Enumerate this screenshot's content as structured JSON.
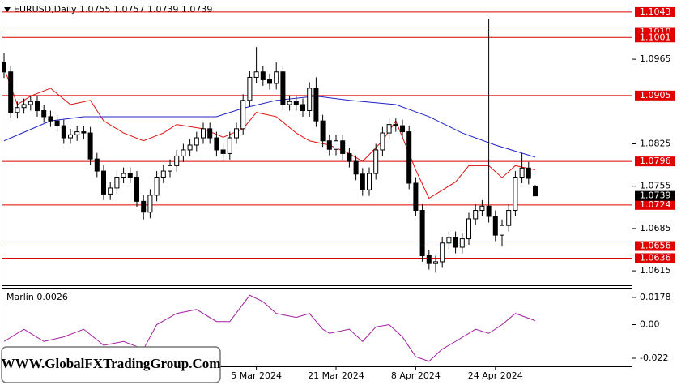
{
  "chart_data": {
    "type": "candlestick",
    "title": "EURUSD,Daily  1.0755 1.0757 1.0739 1.0739",
    "indicator_label": "Marlin 0.0026",
    "watermark": "WWW.GlobalFXTradingGroup.Com",
    "categories": [
      null,
      null,
      null,
      null,
      null,
      null,
      null,
      null,
      null,
      null,
      null,
      null,
      null,
      null,
      null,
      null,
      null,
      null,
      null,
      null,
      null,
      null,
      null,
      null,
      null,
      null,
      null,
      null,
      null,
      null,
      null,
      null,
      null,
      null,
      null,
      null,
      null,
      null,
      "5 Mar 2024",
      null,
      null,
      null,
      null,
      null,
      null,
      null,
      null,
      null,
      null,
      null,
      "21 Mar 2024",
      null,
      null,
      null,
      null,
      null,
      null,
      null,
      null,
      null,
      null,
      null,
      "8 Apr 2024",
      null,
      null,
      null,
      null,
      null,
      null,
      null,
      null,
      null,
      null,
      null,
      "24 Apr 2024",
      null,
      null,
      null,
      null,
      null,
      null
    ],
    "open": [
      1.096,
      1.0944,
      1.0877,
      1.0885,
      1.089,
      1.0895,
      1.088,
      1.087,
      1.0863,
      1.0855,
      1.0835,
      1.084,
      1.0845,
      1.0843,
      1.08,
      1.078,
      1.0742,
      1.0752,
      1.077,
      1.0776,
      1.077,
      1.073,
      1.0712,
      1.074,
      1.077,
      1.078,
      1.0789,
      1.0805,
      1.0815,
      1.0823,
      1.0835,
      1.085,
      1.0835,
      1.0815,
      1.0809,
      1.0835,
      1.085,
      1.0897,
      1.0935,
      1.0944,
      1.0931,
      1.0925,
      1.0944,
      1.089,
      1.0895,
      1.089,
      1.088,
      1.0917,
      1.0863,
      1.083,
      1.0816,
      1.083,
      1.0809,
      1.0796,
      1.0775,
      1.0749,
      1.0776,
      1.0815,
      1.0843,
      1.0857,
      1.0855,
      1.0845,
      1.076,
      1.0715,
      1.064,
      1.0627,
      1.063,
      1.0661,
      1.067,
      1.0654,
      1.0668,
      1.0701,
      1.0715,
      1.0722,
      1.0705,
      1.0674,
      1.069,
      1.0715,
      1.077,
      1.0785,
      1.0755
    ],
    "high": [
      1.0975,
      1.0954,
      1.0895,
      1.09,
      1.0905,
      1.0905,
      1.089,
      1.088,
      1.0873,
      1.0865,
      1.085,
      1.0855,
      1.0855,
      1.0853,
      1.081,
      1.079,
      1.0762,
      1.078,
      1.0786,
      1.0786,
      1.078,
      1.074,
      1.075,
      1.078,
      1.079,
      1.0799,
      1.0815,
      1.0825,
      1.0833,
      1.0845,
      1.086,
      1.086,
      1.0845,
      1.0825,
      1.0845,
      1.086,
      1.0907,
      1.0945,
      1.0985,
      1.0954,
      1.0941,
      1.096,
      1.0954,
      1.0905,
      1.0905,
      1.09,
      1.0927,
      1.0935,
      1.0873,
      1.084,
      1.084,
      1.084,
      1.0819,
      1.0806,
      1.0785,
      1.0786,
      1.0825,
      1.0853,
      1.0867,
      1.0867,
      1.0865,
      1.0855,
      1.077,
      1.0725,
      1.065,
      1.064,
      1.0671,
      1.068,
      1.068,
      1.0678,
      1.0711,
      1.0725,
      1.0732,
      1.1032,
      1.0715,
      1.07,
      1.0725,
      1.078,
      1.081,
      1.0795,
      1.0757
    ],
    "low": [
      1.0934,
      1.0867,
      1.0867,
      1.0875,
      1.088,
      1.087,
      1.086,
      1.0853,
      1.0845,
      1.0825,
      1.0825,
      1.083,
      1.0833,
      1.079,
      1.077,
      1.0732,
      1.0732,
      1.0742,
      1.076,
      1.076,
      1.072,
      1.07,
      1.0702,
      1.073,
      1.076,
      1.077,
      1.0779,
      1.0795,
      1.0805,
      1.0813,
      1.0825,
      1.0825,
      1.0805,
      1.0799,
      1.0799,
      1.0825,
      1.084,
      1.0887,
      1.0925,
      1.0921,
      1.0915,
      1.0915,
      1.088,
      1.088,
      1.088,
      1.087,
      1.087,
      1.0853,
      1.082,
      1.0806,
      1.0806,
      1.0799,
      1.0786,
      1.0765,
      1.0739,
      1.0739,
      1.0766,
      1.0805,
      1.0833,
      1.0845,
      1.0835,
      1.075,
      1.0705,
      1.063,
      1.0617,
      1.0612,
      1.062,
      1.0651,
      1.0644,
      1.0644,
      1.0658,
      1.0691,
      1.0705,
      1.0695,
      1.0664,
      1.0655,
      1.068,
      1.0705,
      1.076,
      1.0758,
      1.0739
    ],
    "close": [
      1.0944,
      1.0877,
      1.0885,
      1.089,
      1.0895,
      1.088,
      1.087,
      1.0863,
      1.0855,
      1.0835,
      1.084,
      1.0845,
      1.0843,
      1.08,
      1.078,
      1.0742,
      1.0752,
      1.077,
      1.0776,
      1.077,
      1.073,
      1.0712,
      1.074,
      1.077,
      1.078,
      1.0789,
      1.0805,
      1.0815,
      1.0823,
      1.0835,
      1.085,
      1.0835,
      1.0815,
      1.0809,
      1.0835,
      1.085,
      1.0897,
      1.0935,
      1.0944,
      1.0931,
      1.0925,
      1.0944,
      1.089,
      1.0895,
      1.089,
      1.088,
      1.0917,
      1.0863,
      1.083,
      1.0816,
      1.083,
      1.0809,
      1.0796,
      1.0775,
      1.0749,
      1.0776,
      1.0815,
      1.0843,
      1.0857,
      1.0855,
      1.0845,
      1.076,
      1.0715,
      1.064,
      1.0627,
      1.063,
      1.0661,
      1.067,
      1.0654,
      1.0668,
      1.0701,
      1.0715,
      1.0722,
      1.0705,
      1.0674,
      1.069,
      1.0715,
      1.077,
      1.0785,
      1.0768,
      1.0739
    ],
    "moving_averages": [
      {
        "color": "#e01010",
        "x": [
          0,
          2,
          4,
          7,
          10,
          13,
          15,
          18,
          21,
          24,
          26,
          30,
          33,
          36,
          38,
          41,
          44,
          46,
          49,
          52,
          54,
          57,
          59,
          62,
          64,
          68,
          70,
          73,
          75,
          77,
          80
        ],
        "values": [
          1.0951,
          1.089,
          1.0904,
          1.0917,
          1.089,
          1.0897,
          1.0863,
          1.0843,
          1.083,
          1.0843,
          1.0857,
          1.085,
          1.0836,
          1.085,
          1.0877,
          1.087,
          1.0843,
          1.083,
          1.0823,
          1.0809,
          1.0796,
          1.083,
          1.0863,
          1.0782,
          1.0735,
          1.0762,
          1.0789,
          1.0789,
          1.0769,
          1.0789,
          1.0782
        ]
      },
      {
        "color": "#2020c8",
        "x": [
          0,
          7,
          12,
          18,
          26,
          32,
          36,
          41,
          47,
          52,
          59,
          64,
          69,
          74,
          80
        ],
        "values": [
          1.083,
          1.0863,
          1.087,
          1.087,
          1.087,
          1.087,
          1.0884,
          1.0897,
          1.0904,
          1.0897,
          1.089,
          1.087,
          1.0843,
          1.0823,
          1.0803
        ]
      }
    ],
    "levels": [
      1.1043,
      {
        "value": 1.101,
        "label": "1.1010"
      },
      1.1001,
      1.0905,
      1.0796,
      1.0724,
      1.0656,
      1.0636
    ],
    "level_color": "#e00000",
    "last_price": 1.0739,
    "ylim": [
      1.0591,
      1.1059
    ],
    "yticks": [
      1.0615,
      1.0685,
      1.0755,
      1.0825,
      1.0965
    ],
    "indicator": {
      "color": "#a020a0",
      "x": [
        0,
        3,
        6,
        9,
        12,
        15,
        18,
        21,
        23,
        26,
        29,
        32,
        34,
        37,
        39,
        41,
        44,
        46,
        48,
        49,
        52,
        54,
        56,
        58,
        60,
        62,
        64,
        66,
        68,
        71,
        73,
        75,
        77,
        80
      ],
      "values": [
        -0.011,
        -0.003,
        -0.011,
        -0.008,
        -0.003,
        -0.0135,
        -0.011,
        -0.016,
        0,
        0.0073,
        0.0099,
        0.002,
        0.002,
        0.0192,
        0.015,
        0.0073,
        0.0047,
        0.0073,
        -0.003,
        -0.0057,
        -0.003,
        -0.011,
        -0.0015,
        0,
        -0.008,
        -0.021,
        -0.024,
        -0.016,
        -0.011,
        -0.003,
        -0.0057,
        0,
        0.0073,
        0.0026
      ],
      "ylim": [
        -0.0273,
        0.0236
      ],
      "yticks": [
        0.0178,
        {
          "value": 0,
          "label": "0.00"
        },
        -0.022
      ]
    }
  }
}
